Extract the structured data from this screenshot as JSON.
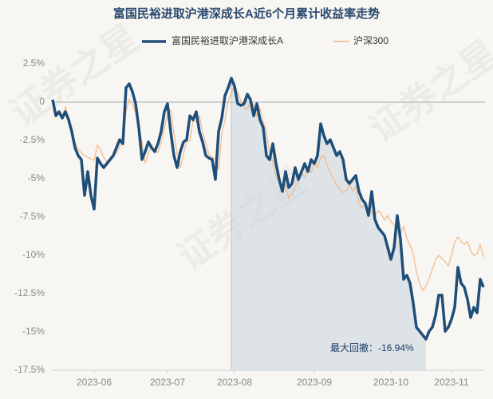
{
  "chart_data": {
    "type": "line",
    "title": "富国民裕进取沪港深成长A近6个月累计收益率走势",
    "watermark": "证券之星",
    "annotation": "最大回撤：-16.94%",
    "categories": [
      null,
      null,
      null,
      null,
      null,
      null,
      null,
      null,
      null,
      null,
      null,
      null,
      null,
      "2023-06",
      null,
      null,
      null,
      null,
      null,
      null,
      null,
      null,
      null,
      null,
      null,
      null,
      null,
      null,
      null,
      null,
      null,
      null,
      null,
      null,
      null,
      null,
      "2023-07",
      null,
      null,
      null,
      null,
      null,
      null,
      null,
      null,
      null,
      null,
      null,
      null,
      null,
      null,
      null,
      null,
      null,
      null,
      null,
      null,
      "2023-08",
      null,
      null,
      null,
      null,
      null,
      null,
      null,
      null,
      null,
      null,
      null,
      null,
      null,
      null,
      null,
      null,
      null,
      null,
      null,
      null,
      null,
      null,
      null,
      null,
      "2023-09",
      null,
      null,
      null,
      null,
      null,
      null,
      null,
      null,
      null,
      null,
      null,
      null,
      null,
      null,
      null,
      null,
      null,
      null,
      null,
      null,
      null,
      null,
      null,
      "2023-10",
      null,
      null,
      null,
      null,
      null,
      null,
      null,
      null,
      null,
      null,
      null,
      null,
      null,
      null,
      null,
      null,
      null,
      null,
      "2023-11",
      null,
      null,
      null,
      null,
      null,
      null,
      null,
      null,
      null,
      null
    ],
    "series": [
      {
        "name": "富国民裕进取沪港深成长A",
        "color": "#1f4e79",
        "values": [
          0.16,
          -0.89,
          -0.63,
          -1.04,
          -0.63,
          -1.15,
          -1.93,
          -2.97,
          -3.49,
          -3.75,
          -6.09,
          -4.53,
          -6.09,
          -6.98,
          -3.65,
          -4.01,
          -4.27,
          -4.01,
          -3.75,
          -3.49,
          -2.97,
          -2.45,
          -2.71,
          0.94,
          1.2,
          0.68,
          -0.1,
          -1.67,
          -3.75,
          -3.23,
          -2.6,
          -2.97,
          -3.23,
          -2.71,
          -1.93,
          -0.63,
          -0.1,
          -1.93,
          -3.49,
          -4.27,
          -3.23,
          -2.6,
          -2.45,
          -0.89,
          -1.15,
          -0.63,
          -1.93,
          -2.6,
          -3.49,
          -3.65,
          -3.75,
          -5.05,
          -1.93,
          -1.04,
          0.42,
          0.94,
          1.56,
          1.04,
          -0.1,
          -0.21,
          -0.1,
          0.52,
          0.16,
          -0.89,
          -0.1,
          -1.15,
          -1.67,
          -3.49,
          -3.75,
          -2.71,
          -4.01,
          -5.05,
          -5.83,
          -4.53,
          -5.57,
          -5.31,
          -4.27,
          -5.05,
          -4.53,
          -4.01,
          -4.53,
          -3.75,
          -4.01,
          -3.49,
          -1.41,
          -2.19,
          -2.71,
          -2.45,
          -2.97,
          -3.49,
          -3.23,
          -3.75,
          -5.05,
          -5.31,
          -5.05,
          -4.79,
          -5.83,
          -6.35,
          -6.61,
          -7.4,
          -5.83,
          -7.66,
          -8.18,
          -8.44,
          -8.7,
          -9.48,
          -10.26,
          -9.48,
          -7.4,
          -8.96,
          -11.56,
          -11.3,
          -11.82,
          -13.13,
          -14.69,
          -14.95,
          -15.21,
          -15.47,
          -14.95,
          -14.69,
          -13.91,
          -12.6,
          -12.6,
          -14.95,
          -14.69,
          -14.17,
          -13.39,
          -10.78,
          -11.82,
          -12.08,
          -12.86,
          -14.06,
          -13.39,
          -13.75,
          -11.56,
          -12.08
        ]
      },
      {
        "name": "沪深300",
        "color": "#f0b98a",
        "values": [
          0,
          -0.6,
          -0.7,
          -0.9,
          -0.3,
          -1.2,
          -1.9,
          -2.6,
          -3.1,
          -3.3,
          -3.5,
          -3.6,
          -3.7,
          -3.8,
          -2.8,
          -3.1,
          -3.6,
          -3.9,
          -3.7,
          -3.5,
          -3.3,
          -2.9,
          -2.6,
          -0.6,
          0.2,
          -0.1,
          -0.7,
          -1.5,
          -2.6,
          -4.0,
          -3.3,
          -2.9,
          -3.1,
          -3.3,
          -2.6,
          -1.7,
          -0.8,
          -0.5,
          -2.0,
          -3.4,
          -4.3,
          -3.4,
          -2.6,
          -2.5,
          -1.2,
          -1.3,
          -0.9,
          -2.0,
          -2.7,
          -3.4,
          -3.6,
          -3.7,
          -4.4,
          -2.1,
          -1.2,
          0.1,
          0.6,
          1.1,
          0.6,
          0.1,
          -0.3,
          -0.5,
          0.1,
          -0.2,
          -0.9,
          -0.4,
          -1.3,
          -1.9,
          -3.3,
          -3.9,
          -4.8,
          -5.2,
          -5.7,
          -5.4,
          -6.3,
          -6.0,
          -5.5,
          -5.2,
          -4.6,
          -4.9,
          -4.2,
          -4.6,
          -3.9,
          -4.3,
          -3.6,
          -3.5,
          -4.1,
          -4.6,
          -5.0,
          -5.4,
          -5.7,
          -5.9,
          -5.8,
          -5.4,
          -5.8,
          -5.5,
          -6.6,
          -6.9,
          -6.6,
          -7.0,
          -7.2,
          -7.4,
          -7.1,
          -7.3,
          -7.7,
          -7.4,
          -7.8,
          -8.0,
          -8.3,
          -8.6,
          -8.1,
          -8.9,
          -9.3,
          -9.9,
          -11.1,
          -11.8,
          -12.3,
          -12.0,
          -11.5,
          -10.9,
          -10.3,
          -10.0,
          -10.2,
          -10.4,
          -10.7,
          -10.0,
          -9.1,
          -8.8,
          -9.1,
          -9.3,
          -9.1,
          -9.7,
          -10.0,
          -9.9,
          -9.3,
          -10.1
        ]
      }
    ],
    "ylim": [
      -17.5,
      2.5
    ],
    "yticks": [
      {
        "value": 2.5,
        "label": "2.5%"
      },
      0,
      {
        "value": -2.5,
        "label": "-2.5%"
      },
      {
        "value": -5,
        "label": "-5%"
      },
      {
        "value": -7.5,
        "label": "-7.5%"
      },
      {
        "value": -10,
        "label": "-10%"
      },
      {
        "value": -12.5,
        "label": "-12.5%"
      },
      {
        "value": -15,
        "label": "-15%"
      },
      {
        "value": -17.5,
        "label": "-17.5%"
      }
    ]
  }
}
